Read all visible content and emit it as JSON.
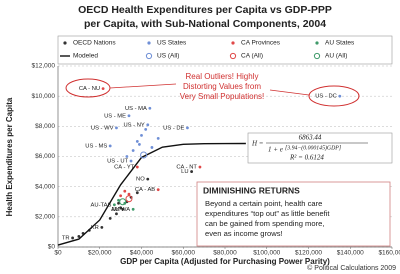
{
  "chart_data": {
    "type": "scatter",
    "title_lines": [
      "OECD Health Expenditures per Capita vs GDP-PPP",
      "per Capita, with Sub-National Components, 2004"
    ],
    "x_label": "GDP per Capita (Adjusted for Purchasing Power Parity)",
    "y_label": "Health Expenditures per Capita",
    "xlim": [
      0,
      160000
    ],
    "ylim": [
      0,
      12000
    ],
    "xticks": [
      {
        "value": 0,
        "label": "$0"
      },
      {
        "value": 20000,
        "label": "$20,000"
      },
      {
        "value": 40000,
        "label": "$40,000"
      },
      {
        "value": 60000,
        "label": "$60,000"
      },
      {
        "value": 80000,
        "label": "$80,000"
      },
      {
        "value": 100000,
        "label": "$100,000"
      },
      {
        "value": 120000,
        "label": "$120,000"
      },
      {
        "value": 140000,
        "label": "$140,000"
      },
      {
        "value": 160000,
        "label": "$160,000"
      }
    ],
    "yticks": [
      {
        "value": 0,
        "label": "$0"
      },
      {
        "value": 2000,
        "label": "$2,000"
      },
      {
        "value": 4000,
        "label": "$4,000"
      },
      {
        "value": 6000,
        "label": "$6,000"
      },
      {
        "value": 8000,
        "label": "$8,000"
      },
      {
        "value": 10000,
        "label": "$10,000"
      },
      {
        "value": 12000,
        "label": "$12,000"
      }
    ],
    "grid": true,
    "series": [
      {
        "name": "OECD Nations",
        "color": "#333333",
        "marker": "dot",
        "x": [
          7000,
          10000,
          12000,
          15000,
          21000,
          25000,
          28000,
          31000,
          30000,
          33000,
          35000,
          29000,
          43000,
          64000,
          38000
        ],
        "values": [
          600,
          700,
          900,
          1100,
          1300,
          1900,
          2200,
          2500,
          2600,
          3000,
          3300,
          2900,
          4500,
          5000,
          3600
        ],
        "labels": [
          "TR",
          null,
          null,
          null,
          "KR",
          null,
          null,
          "UK",
          null,
          null,
          null,
          null,
          "NO",
          "LU",
          null
        ]
      },
      {
        "name": "US States",
        "color": "#6f8fd6",
        "marker": "dot",
        "x": [
          34000,
          44000,
          43000,
          28000,
          25000,
          35000,
          62000,
          135000,
          38000,
          40000,
          36000,
          45000,
          33000,
          42000,
          48000,
          39000
        ],
        "values": [
          8700,
          9200,
          8100,
          7900,
          6700,
          5700,
          7900,
          10000,
          7000,
          7400,
          6400,
          6600,
          6000,
          7800,
          7200,
          6800
        ],
        "labels": [
          "US - ME",
          "US - MA",
          "US - NY",
          "US - WV",
          "US - MS",
          "US - UT",
          "US - DE",
          "US - DC",
          null,
          null,
          null,
          null,
          null,
          null,
          null,
          null
        ]
      },
      {
        "name": "CA Provinces",
        "color": "#e04848",
        "marker": "dot",
        "x": [
          21600,
          38000,
          68000,
          48000,
          30000,
          34000,
          32000
        ],
        "values": [
          10500,
          5300,
          5300,
          3800,
          3400,
          3500,
          3700
        ],
        "labels": [
          "CA - NU",
          "CA - YT",
          "CA - NT",
          "CA - AB",
          null,
          null,
          null
        ]
      },
      {
        "name": "AU States",
        "color": "#3f9a6a",
        "marker": "dot",
        "x": [
          27000,
          36000,
          29000,
          32000
        ],
        "values": [
          2800,
          2500,
          3100,
          2900
        ],
        "labels": [
          "AU-TAS",
          "AU-WA",
          null,
          null
        ]
      },
      {
        "name": "Modeled",
        "color": "#111111",
        "marker": "line",
        "x": [
          0,
          10000,
          20000,
          30000,
          40000,
          50000,
          60000,
          70000,
          80000,
          90000
        ],
        "values": [
          131,
          525,
          1792,
          4125,
          5937,
          6622,
          6805,
          6850,
          6860,
          6862
        ]
      },
      {
        "name": "US (All)",
        "color": "#6f8fd6",
        "marker": "open",
        "x": [
          41000
        ],
        "values": [
          6100
        ]
      },
      {
        "name": "CA (All)",
        "color": "#e04848",
        "marker": "open",
        "x": [
          34000
        ],
        "values": [
          3200
        ]
      },
      {
        "name": "AU (All)",
        "color": "#3f9a6a",
        "marker": "open",
        "x": [
          31000
        ],
        "values": [
          3000
        ]
      }
    ],
    "callout_lines": [
      "Real Outliers!  Highly",
      "Distorting Values from",
      "Very Small Populations!"
    ],
    "formula": {
      "lhs": "H =",
      "numerator": "6863.44",
      "denominator": "1 + e",
      "exponent": "[3.94−(0.000145)GDP]",
      "r_squared": "R² = 0.6124"
    },
    "box_title": "DIMINISHING RETURNS",
    "box_lines": [
      "Beyond a certain point, health care",
      "expenditures “top out” as little benefit",
      "can be gained from spending more,",
      "even as income grows!"
    ],
    "credit": "© Political Calculations 2009"
  }
}
